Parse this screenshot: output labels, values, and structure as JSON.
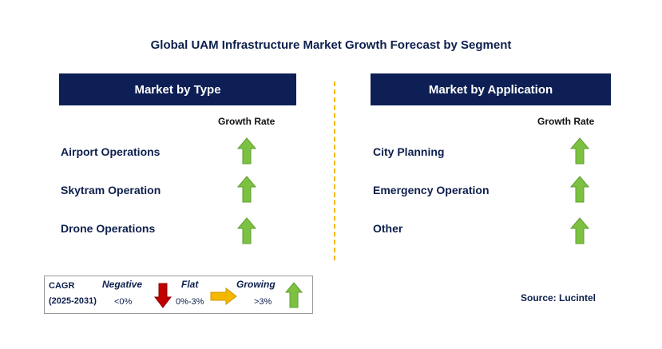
{
  "title": "Global UAM Infrastructure Market Growth Forecast by Segment",
  "left_panel": {
    "header": "Market by Type",
    "growth_label": "Growth Rate",
    "rows": [
      {
        "label": "Airport Operations",
        "trend": "growing"
      },
      {
        "label": "Skytram Operation",
        "trend": "growing"
      },
      {
        "label": "Drone Operations",
        "trend": "growing"
      }
    ]
  },
  "right_panel": {
    "header": "Market by Application",
    "growth_label": "Growth Rate",
    "rows": [
      {
        "label": "City Planning",
        "trend": "growing"
      },
      {
        "label": "Emergency Operation",
        "trend": "growing"
      },
      {
        "label": "Other",
        "trend": "growing"
      }
    ]
  },
  "legend": {
    "cagr_label": "CAGR",
    "period": "(2025-2031)",
    "negative": {
      "label": "Negative",
      "value": "<0%",
      "color": "#c00000",
      "icon": "down-arrow-icon"
    },
    "flat": {
      "label": "Flat",
      "value": "0%-3%",
      "color": "#f5b800",
      "icon": "right-arrow-icon"
    },
    "growing": {
      "label": "Growing",
      "value": ">3%",
      "color": "#7cc142",
      "icon": "up-arrow-icon"
    }
  },
  "source": "Source: Lucintel",
  "colors": {
    "header_bg": "#0d1f54",
    "divider": "#f5b800",
    "growth_arrow": "#7cc142"
  }
}
